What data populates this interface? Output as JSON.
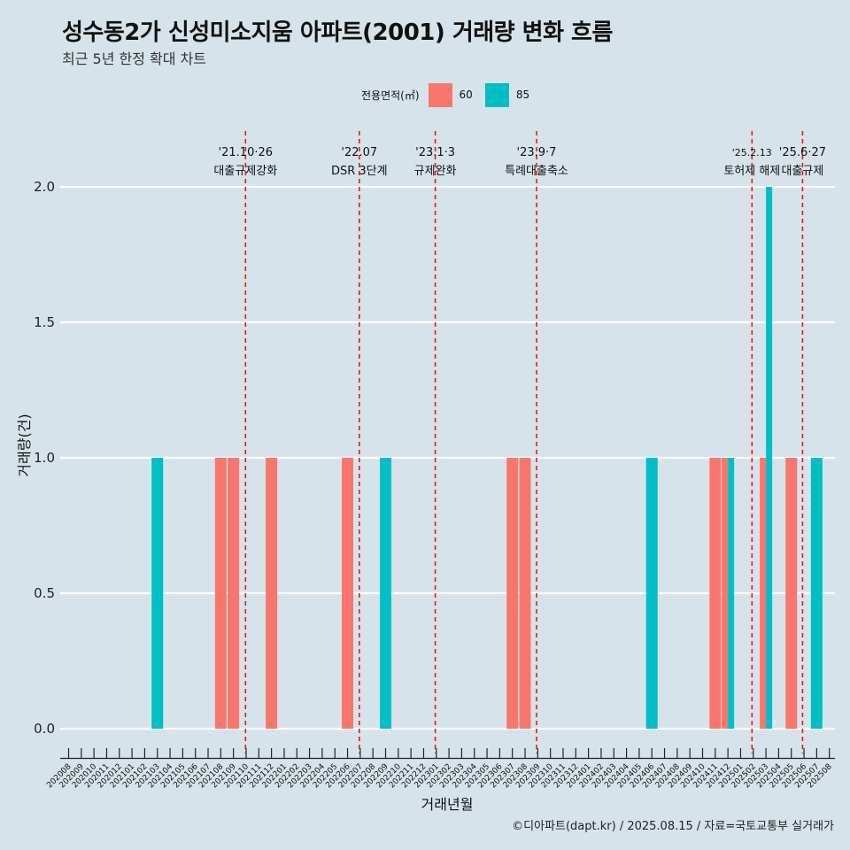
{
  "title": "성수동2가 신성미소지움 아파트(2001) 거래량 변화 흐름",
  "subtitle": "최근 5년 한정 확대 차트",
  "caption": "©디아파트(dapt.kr) / 2025.08.15 / 자료=국토교통부 실거래가",
  "legend": {
    "title": "전용면적(㎡)",
    "items": [
      {
        "label": "60",
        "color": "#f8766d"
      },
      {
        "label": "85",
        "color": "#00bfc4"
      }
    ]
  },
  "chart_data": {
    "type": "bar",
    "xlabel": "거래년월",
    "ylabel": "거래량(건)",
    "ylim": [
      0,
      2
    ],
    "yticks": [
      "0.0",
      "0.5",
      "1.0",
      "1.5",
      "2.0"
    ],
    "categories": [
      "202008",
      "202009",
      "202010",
      "202011",
      "202012",
      "202101",
      "202102",
      "202103",
      "202104",
      "202105",
      "202106",
      "202107",
      "202108",
      "202109",
      "202110",
      "202111",
      "202112",
      "202201",
      "202202",
      "202203",
      "202204",
      "202205",
      "202206",
      "202207",
      "202208",
      "202209",
      "202210",
      "202211",
      "202212",
      "202301",
      "202302",
      "202303",
      "202304",
      "202305",
      "202306",
      "202307",
      "202308",
      "202309",
      "202310",
      "202311",
      "202312",
      "202401",
      "202402",
      "202403",
      "202404",
      "202405",
      "202406",
      "202407",
      "202408",
      "202409",
      "202410",
      "202411",
      "202412",
      "202501",
      "202502",
      "202503",
      "202504",
      "202505",
      "202506",
      "202507",
      "202508"
    ],
    "series": [
      {
        "name": "60",
        "color": "#f8766d",
        "values": [
          0,
          0,
          0,
          0,
          0,
          0,
          0,
          0,
          0,
          0,
          0,
          0,
          1,
          1,
          0,
          0,
          1,
          0,
          0,
          0,
          0,
          0,
          1,
          0,
          0,
          0,
          0,
          0,
          0,
          0,
          0,
          0,
          0,
          0,
          0,
          1,
          1,
          0,
          0,
          0,
          0,
          0,
          0,
          0,
          0,
          0,
          0,
          0,
          0,
          0,
          0,
          1,
          1,
          0,
          0,
          1,
          0,
          1,
          0,
          0,
          0
        ]
      },
      {
        "name": "85",
        "color": "#00bfc4",
        "values": [
          0,
          0,
          0,
          0,
          0,
          0,
          0,
          1,
          0,
          0,
          0,
          0,
          0,
          0,
          0,
          0,
          0,
          0,
          0,
          0,
          0,
          0,
          0,
          0,
          0,
          1,
          0,
          0,
          0,
          0,
          0,
          0,
          0,
          0,
          0,
          0,
          0,
          0,
          0,
          0,
          0,
          0,
          0,
          0,
          0,
          0,
          1,
          0,
          0,
          0,
          0,
          0,
          1,
          0,
          0,
          2,
          0,
          0,
          0,
          1,
          0
        ]
      }
    ],
    "events": [
      {
        "date": "'21.10·26",
        "label": "대출규제강화"
      },
      {
        "date": "'22.07",
        "label": "DSR 3단계"
      },
      {
        "date": "'23.1·3",
        "label": "규제완화"
      },
      {
        "date": "'23.9·7",
        "label": "특례대출축소"
      },
      {
        "date": "'25.2.13",
        "label": "토허제 해제"
      },
      {
        "date": "'25.6·27",
        "label": "대출규제"
      }
    ],
    "event_line_color": "#e41a1c",
    "grid": true
  }
}
